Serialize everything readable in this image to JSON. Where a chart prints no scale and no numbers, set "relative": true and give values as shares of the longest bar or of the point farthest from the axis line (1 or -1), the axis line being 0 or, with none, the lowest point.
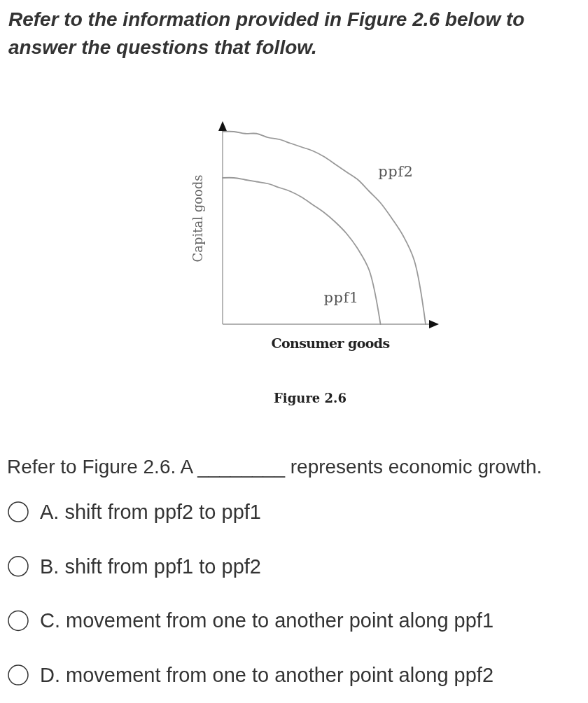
{
  "chart_data": {
    "type": "line",
    "relative": true,
    "title": "Refer to the information provided in Figure 2.6 below to answer the questions that follow.",
    "xlabel": "Consumer goods",
    "ylabel": "Capital goods",
    "categories": [
      null,
      null,
      null,
      null,
      null,
      null,
      null,
      null,
      null,
      null,
      null,
      null,
      null,
      null,
      null,
      null,
      null,
      null,
      null
    ],
    "series": [
      {
        "name": "ppf1",
        "color": "#999999",
        "values": [
          0.76,
          0.76,
          0.75,
          0.74,
          0.73,
          0.71,
          0.69,
          0.66,
          0.62,
          0.58,
          0.53,
          0.47,
          0.39,
          0.28,
          0,
          null,
          null,
          null,
          null
        ]
      },
      {
        "name": "ppf2",
        "color": "#999999",
        "values": [
          1,
          1,
          0.99,
          0.99,
          0.97,
          0.96,
          0.94,
          0.92,
          0.9,
          0.87,
          0.83,
          0.79,
          0.75,
          0.69,
          0.63,
          0.55,
          0.46,
          0.33,
          0
        ]
      }
    ],
    "annotations": [
      "Figure 2.6",
      "Refer to Figure 2.6. A ________ represents economic growth.",
      "A. shift from ppf2 to ppf1",
      "B. shift from ppf1 to ppf2",
      "C. movement from one to another point along ppf1",
      "D. movement from one to another point along ppf2"
    ]
  }
}
